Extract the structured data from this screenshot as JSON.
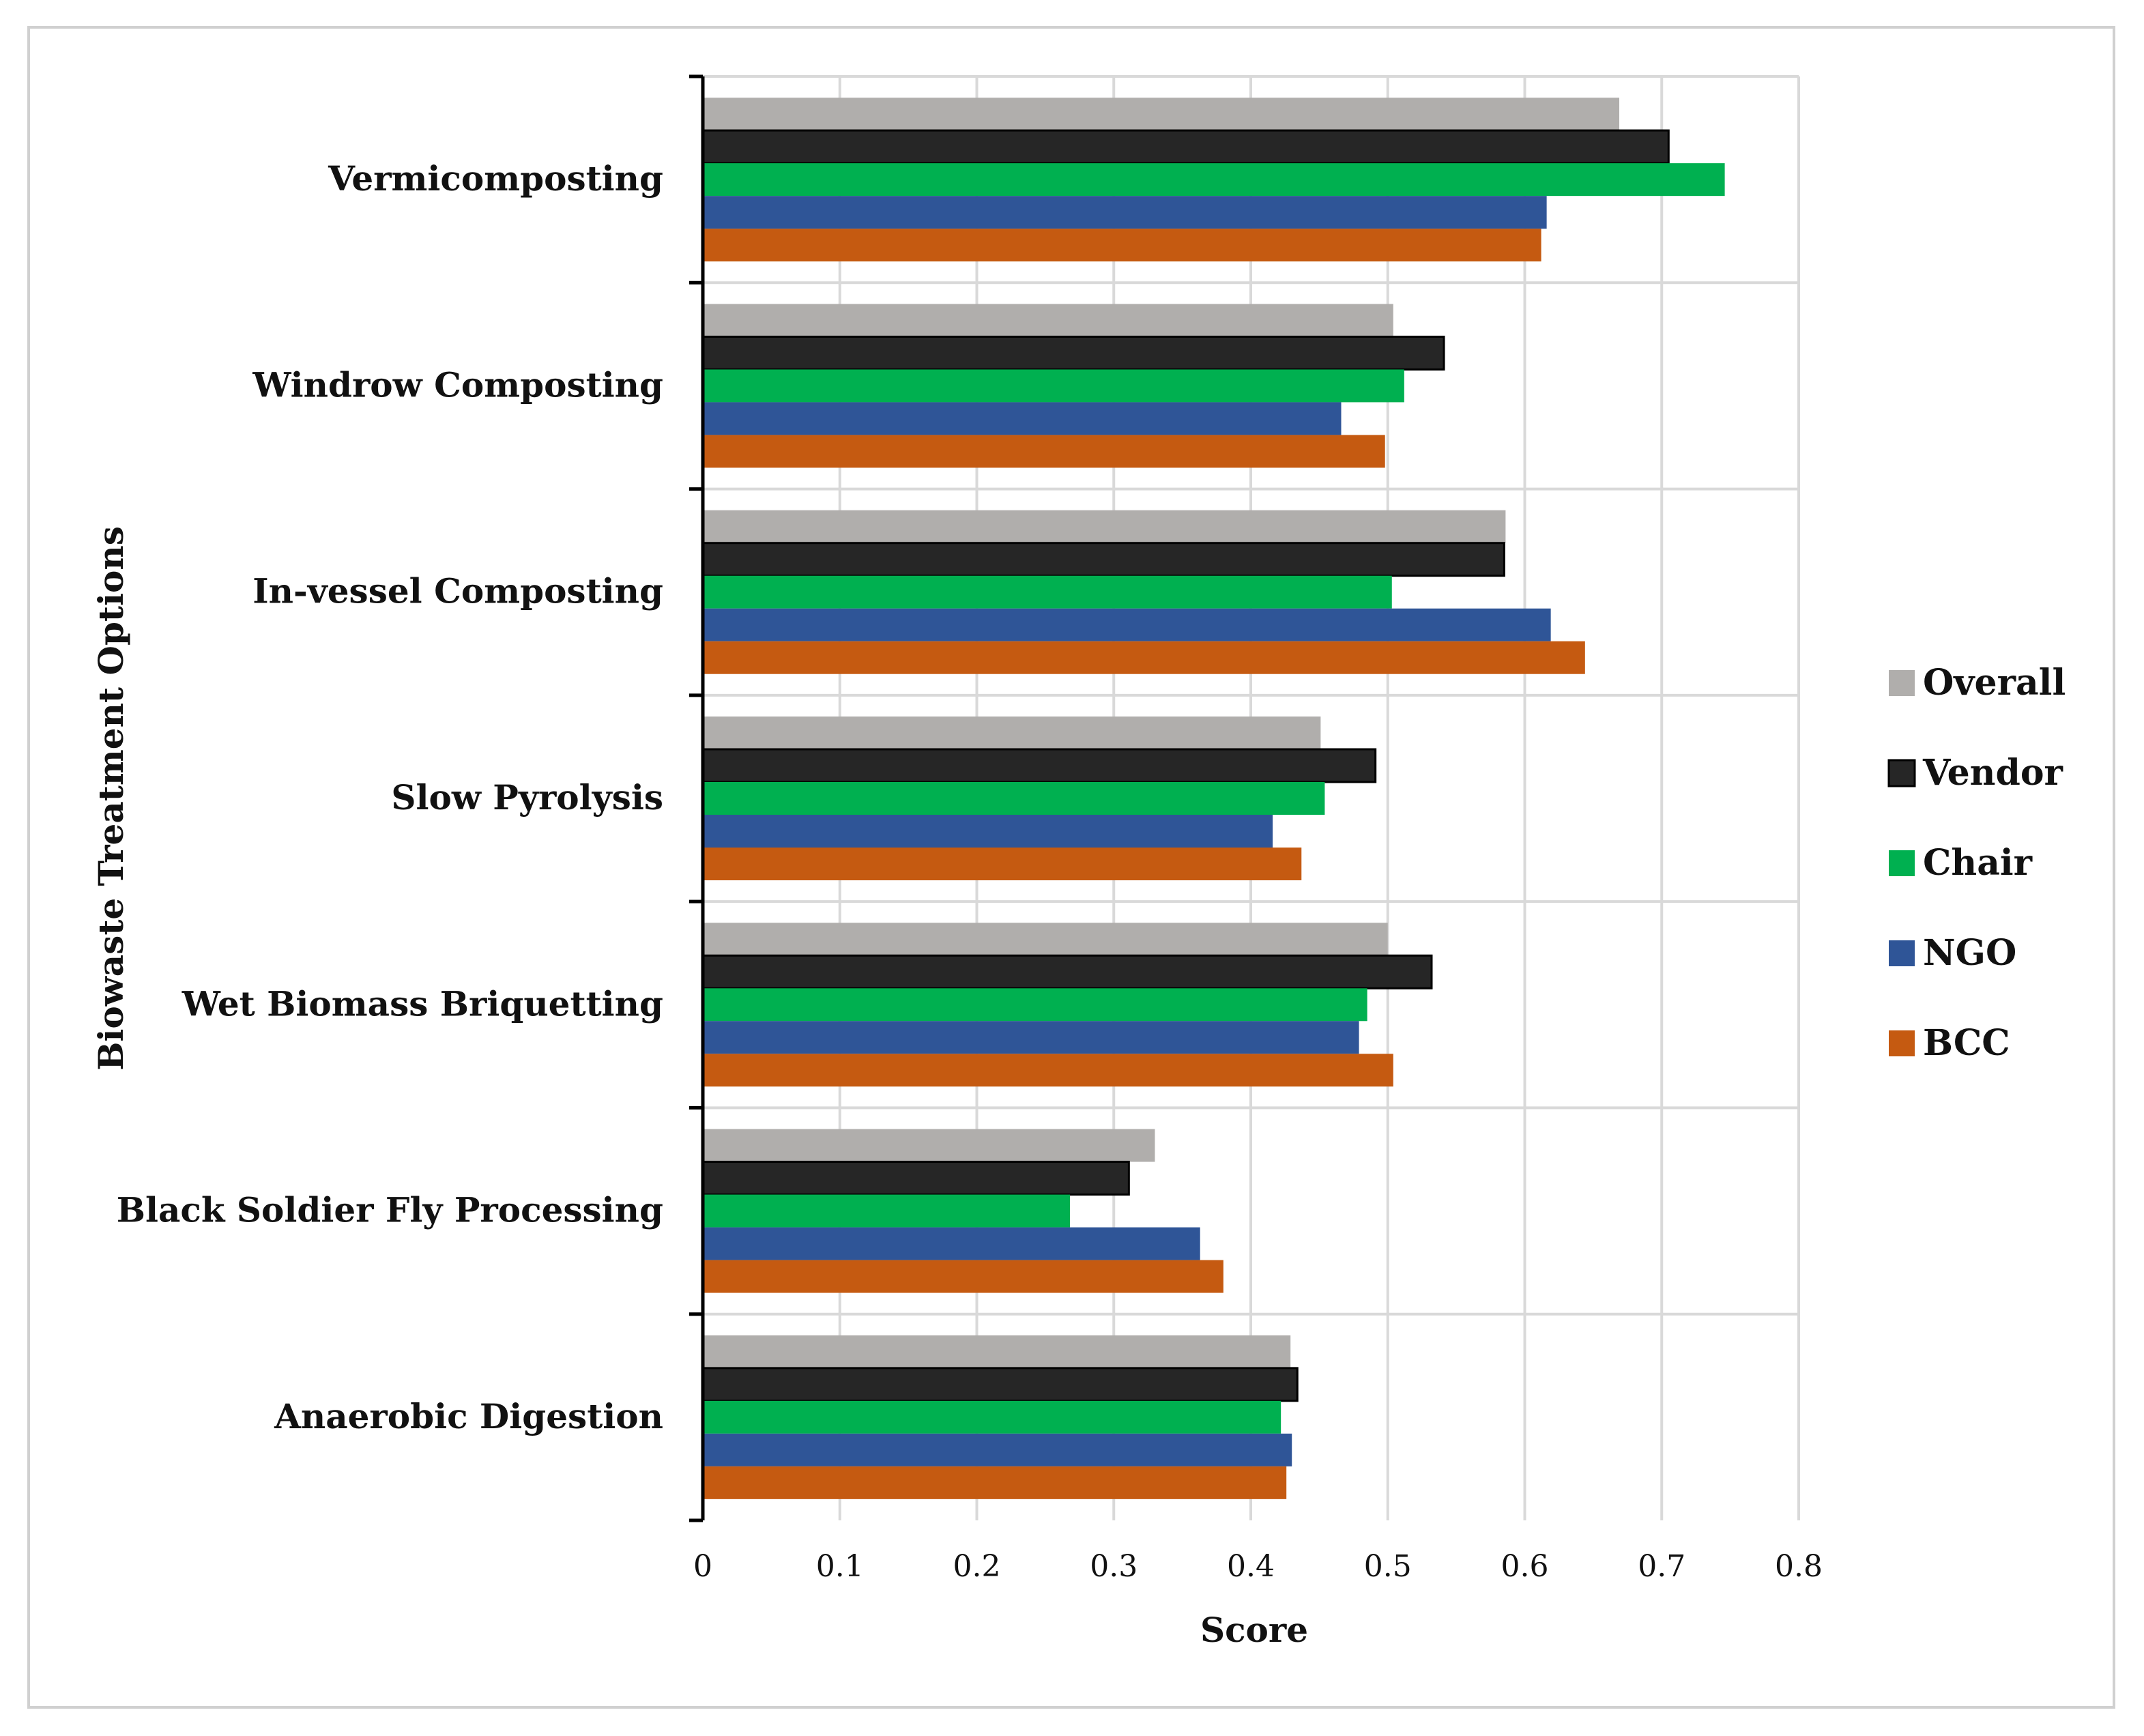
{
  "chart_data": {
    "type": "bar",
    "orientation": "horizontal",
    "title": "",
    "xlabel": "Score",
    "ylabel": "Biowaste Treatment Options",
    "xlim": [
      0,
      0.8
    ],
    "xticks": [
      0,
      0.1,
      0.2,
      0.3,
      0.4,
      0.5,
      0.6,
      0.7,
      0.8
    ],
    "xtick_labels": [
      "0",
      "0.1",
      "0.2",
      "0.3",
      "0.4",
      "0.5",
      "0.6",
      "0.7",
      "0.8"
    ],
    "grid": true,
    "legend_position": "right",
    "categories": [
      "Vermicomposting",
      "Windrow Composting",
      "In-vessel Composting",
      "Slow Pyrolysis",
      "Wet Biomass Briquetting",
      "Black Soldier Fly Processing",
      "Anaerobic Digestion"
    ],
    "series": [
      {
        "name": "Overall",
        "color": "#b0aeac",
        "values": [
          0.669,
          0.504,
          0.586,
          0.451,
          0.5,
          0.33,
          0.429
        ]
      },
      {
        "name": "Vendor",
        "color": "#262626",
        "values": [
          0.705,
          0.541,
          0.585,
          0.491,
          0.532,
          0.311,
          0.434
        ]
      },
      {
        "name": "Chair",
        "color": "#00b050",
        "values": [
          0.746,
          0.512,
          0.503,
          0.454,
          0.485,
          0.268,
          0.422
        ]
      },
      {
        "name": "NGO",
        "color": "#2f5597",
        "values": [
          0.616,
          0.466,
          0.619,
          0.416,
          0.479,
          0.363,
          0.43
        ]
      },
      {
        "name": "BCC",
        "color": "#c55a11",
        "values": [
          0.612,
          0.498,
          0.644,
          0.437,
          0.504,
          0.38,
          0.426
        ]
      }
    ]
  }
}
